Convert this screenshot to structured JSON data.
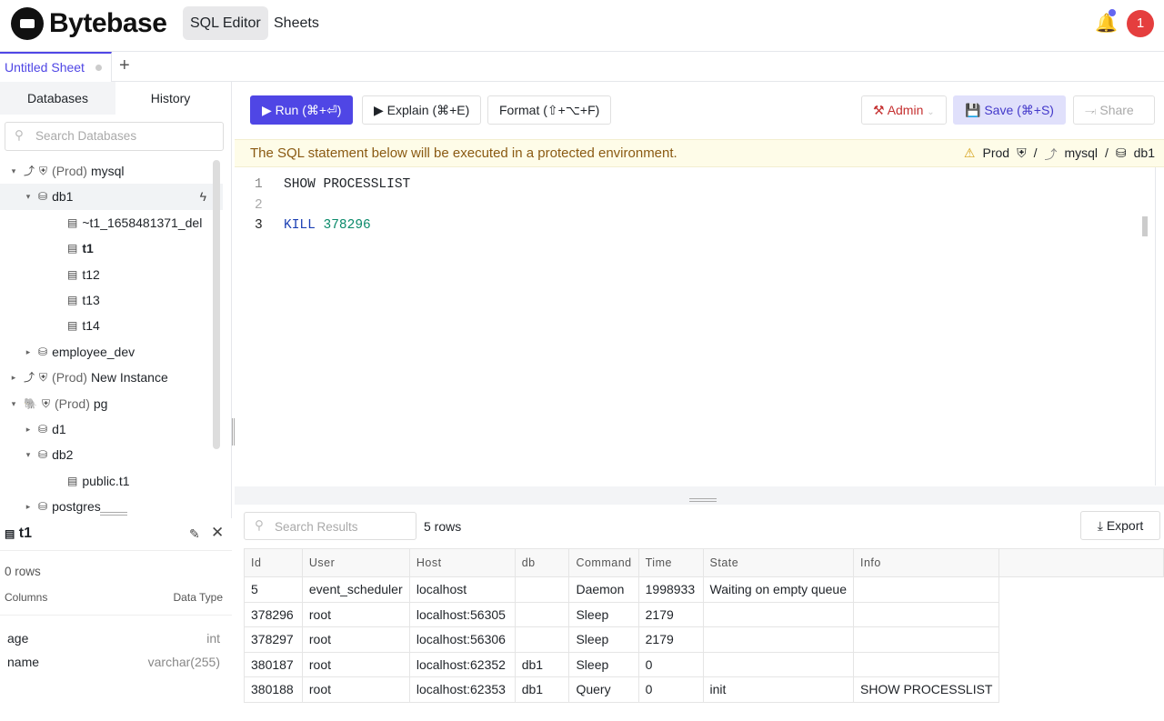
{
  "header": {
    "brand": "Bytebase",
    "nav": [
      "SQL Editor",
      "Sheets"
    ],
    "avatar": "1",
    "notification_dot_color": "#6366f1"
  },
  "tabs": {
    "sheet": "Untitled Sheet",
    "add": "+"
  },
  "sidebar": {
    "tabs": [
      "Databases",
      "History"
    ],
    "search_placeholder": "Search Databases",
    "tree": [
      {
        "level": 0,
        "caret": "▾",
        "icon": "mysql-icon",
        "env": "(Prod)",
        "label": "mysql"
      },
      {
        "level": 1,
        "caret": "▾",
        "icon": "database-icon",
        "label": "db1",
        "selected": true
      },
      {
        "level": 2,
        "icon": "table-icon",
        "label": "~t1_1658481371_del"
      },
      {
        "level": 2,
        "icon": "table-icon",
        "label": "t1",
        "bold": true
      },
      {
        "level": 2,
        "icon": "table-icon",
        "label": "t12"
      },
      {
        "level": 2,
        "icon": "table-icon",
        "label": "t13"
      },
      {
        "level": 2,
        "icon": "table-icon",
        "label": "t14"
      },
      {
        "level": 1,
        "caret": "▸",
        "icon": "database-icon",
        "label": "employee_dev"
      },
      {
        "level": 0,
        "caret": "▸",
        "icon": "mysql-icon",
        "env": "(Prod)",
        "label": "New Instance"
      },
      {
        "level": 0,
        "caret": "▾",
        "icon": "postgres-icon",
        "env": "(Prod)",
        "label": "pg"
      },
      {
        "level": 1,
        "caret": "▸",
        "icon": "database-icon",
        "label": "d1"
      },
      {
        "level": 1,
        "caret": "▾",
        "icon": "database-icon",
        "label": "db2"
      },
      {
        "level": 2,
        "icon": "table-icon",
        "label": "public.t1"
      },
      {
        "level": 1,
        "caret": "▸",
        "icon": "database-icon",
        "label": "postgres"
      }
    ]
  },
  "schema": {
    "table": "t1",
    "rows": "0 rows",
    "columns_label": "Columns",
    "type_label": "Data Type",
    "columns": [
      {
        "name": "age",
        "type": "int"
      },
      {
        "name": "name",
        "type": "varchar(255)"
      }
    ]
  },
  "toolbar": {
    "run": "▶ Run (⌘+⏎)",
    "explain": "▶ Explain (⌘+E)",
    "format": "Format (⇧+⌥+F)",
    "admin": "Admin",
    "save": "Save (⌘+S)",
    "share": "Share"
  },
  "banner": {
    "text": "The SQL statement below will be executed in a protected environment.",
    "env": "Prod",
    "instance": "mysql",
    "database": "db1"
  },
  "editor": {
    "lines": [
      {
        "n": "1",
        "text": "SHOW PROCESSLIST"
      },
      {
        "n": "2",
        "text": ""
      },
      {
        "n": "3",
        "kw": "KILL",
        "num": "378296"
      }
    ]
  },
  "results": {
    "search_placeholder": "Search Results",
    "count": "5 rows",
    "export": "Export",
    "columns": [
      "Id",
      "User",
      "Host",
      "db",
      "Command",
      "Time",
      "State",
      "Info"
    ],
    "rows": [
      [
        "5",
        "event_scheduler",
        "localhost",
        "",
        "Daemon",
        "1998933",
        "Waiting on empty queue",
        ""
      ],
      [
        "378296",
        "root",
        "localhost:56305",
        "",
        "Sleep",
        "2179",
        "",
        ""
      ],
      [
        "378297",
        "root",
        "localhost:56306",
        "",
        "Sleep",
        "2179",
        "",
        ""
      ],
      [
        "380187",
        "root",
        "localhost:62352",
        "db1",
        "Sleep",
        "0",
        "",
        ""
      ],
      [
        "380188",
        "root",
        "localhost:62353",
        "db1",
        "Query",
        "0",
        "init",
        "SHOW PROCESSLIST"
      ]
    ]
  }
}
